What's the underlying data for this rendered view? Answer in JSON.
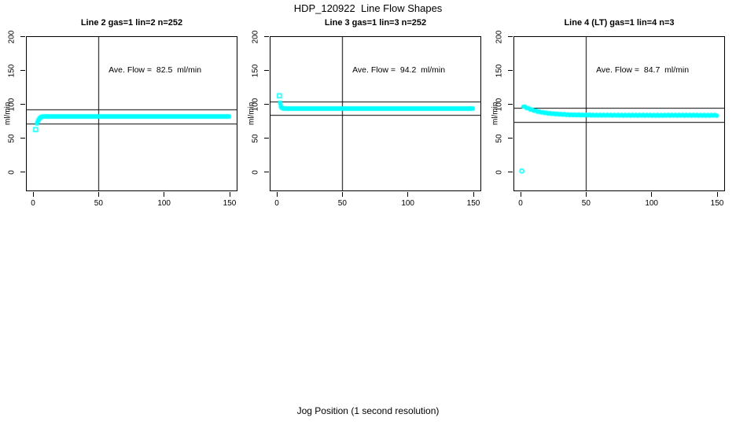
{
  "figure": {
    "title": "HDP_120922  Line Flow Shapes",
    "xlabel": "Jog Position (1 second resolution)",
    "colors": {
      "points": "#00ffff",
      "axis": "#000000",
      "background": "#ffffff"
    }
  },
  "chart_data": [
    {
      "type": "scatter",
      "title": "Line 2 gas=1 lin=2 n=252",
      "annotation": "Ave. Flow =  82.5  ml/min",
      "ave_flow_ml_min": 82.5,
      "n": 252,
      "ylabel": "ml/min",
      "x_ticks": [
        0,
        50,
        100,
        150
      ],
      "y_ticks": [
        0,
        50,
        100,
        150,
        200
      ],
      "xlim": [
        -5.4,
        156
      ],
      "ylim": [
        -28,
        201
      ],
      "hlines": [
        92.5,
        72.5
      ],
      "vline": 50,
      "marker": "square",
      "point_color": "#00ffff",
      "series": {
        "outliers": [
          [
            2,
            63
          ]
        ],
        "lead_points": [
          [
            3,
            72
          ],
          [
            3.5,
            74.5
          ],
          [
            4,
            76.5
          ],
          [
            4.5,
            78
          ],
          [
            5,
            79.5
          ],
          [
            5.5,
            80.6
          ],
          [
            6,
            81.3
          ],
          [
            6.5,
            81.8
          ],
          [
            7,
            82.1
          ],
          [
            7.5,
            82.3
          ]
        ],
        "flat": {
          "x_from": 8,
          "x_to": 150,
          "step": 0.6,
          "y": 82.5
        }
      }
    },
    {
      "type": "scatter",
      "title": "Line 3 gas=1 lin=3 n=252",
      "annotation": "Ave. Flow =  94.2  ml/min",
      "ave_flow_ml_min": 94.2,
      "n": 252,
      "ylabel": "ml/min",
      "x_ticks": [
        0,
        50,
        100,
        150
      ],
      "y_ticks": [
        0,
        50,
        100,
        150,
        200
      ],
      "xlim": [
        -5.4,
        156
      ],
      "ylim": [
        -28,
        201
      ],
      "hlines": [
        104.2,
        84.2
      ],
      "vline": 50,
      "marker": "square",
      "point_color": "#00ffff",
      "series": {
        "outliers": [
          [
            2,
            113
          ]
        ],
        "lead_points": [
          [
            2.5,
            103
          ],
          [
            3,
            98
          ],
          [
            3.5,
            96
          ],
          [
            4,
            95.2
          ],
          [
            4.5,
            94.7
          ]
        ],
        "flat": {
          "x_from": 5,
          "x_to": 150,
          "step": 0.6,
          "y": 94.2
        }
      }
    },
    {
      "type": "scatter",
      "title": "Line 4 (LT) gas=1 lin=4 n=3",
      "annotation": "Ave. Flow =  84.7  ml/min",
      "ave_flow_ml_min": 84.7,
      "n": 3,
      "ylabel": "ml/min",
      "x_ticks": [
        0,
        50,
        100,
        150
      ],
      "y_ticks": [
        0,
        50,
        100,
        150,
        200
      ],
      "xlim": [
        -5.4,
        156
      ],
      "ylim": [
        -28,
        201
      ],
      "hlines": [
        94.7,
        74.7
      ],
      "vline": 50,
      "marker": "circle",
      "point_color": "#00ffff",
      "series": {
        "outliers": [
          [
            1,
            2
          ]
        ],
        "lead_points": [],
        "decay": {
          "x_from": 2,
          "x_to": 150,
          "step": 0.5,
          "y_base": 84.2,
          "amp": 13.5,
          "tau": 13,
          "jitter": 0.8
        }
      }
    }
  ]
}
